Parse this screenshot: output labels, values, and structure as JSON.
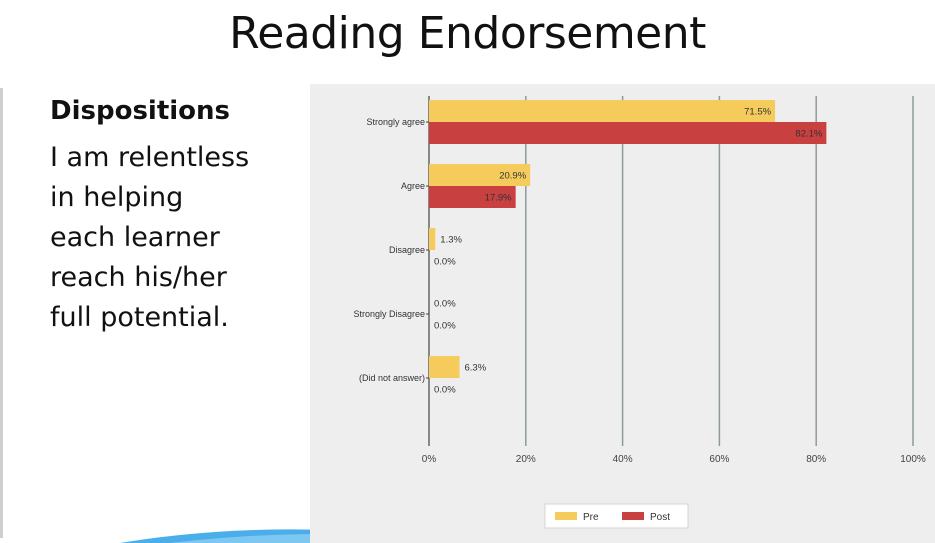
{
  "slide": {
    "title": "Reading Endorsement",
    "subheading": "Dispositions",
    "body_lines": [
      "I am relentless",
      "in helping",
      "each learner",
      "reach his/her",
      "full potential."
    ]
  },
  "colors": {
    "pre": "#f5cb5c",
    "post": "#c94040",
    "panel": "#eeeeee",
    "grid": "#8e9a9a"
  },
  "chart_data": {
    "type": "bar",
    "orientation": "horizontal",
    "categories": [
      "Strongly agree",
      "Agree",
      "Disagree",
      "Strongly Disagree",
      "(Did not answer)"
    ],
    "series": [
      {
        "name": "Pre",
        "values": [
          71.5,
          20.9,
          1.3,
          0.0,
          6.3
        ],
        "labels": [
          "71.5%",
          "20.9%",
          "1.3%",
          "0.0%",
          "6.3%"
        ]
      },
      {
        "name": "Post",
        "values": [
          82.1,
          17.9,
          0.0,
          0.0,
          0.0
        ],
        "labels": [
          "82.1%",
          "17.9%",
          "0.0%",
          "0.0%",
          "0.0%"
        ]
      }
    ],
    "xlim": [
      0,
      100
    ],
    "xticks": [
      0,
      20,
      40,
      60,
      80,
      100
    ],
    "xtick_labels": [
      "0%",
      "20%",
      "40%",
      "60%",
      "80%",
      "100%"
    ],
    "grid": true,
    "legend_position": "bottom"
  }
}
